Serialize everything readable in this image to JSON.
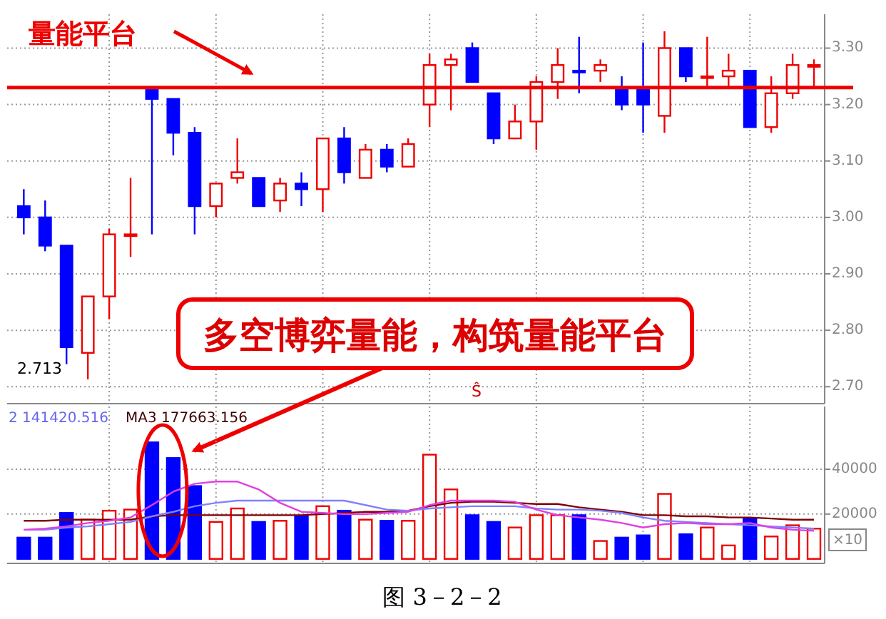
{
  "chart_data": [
    {
      "type": "candlestick",
      "categories": [
        null,
        null,
        null,
        null,
        null,
        null,
        null,
        null,
        null,
        null,
        null,
        null,
        null,
        null,
        null,
        null,
        null,
        null,
        null,
        null,
        null,
        null,
        null,
        null,
        null,
        null,
        null,
        null,
        null,
        null,
        null,
        null,
        null,
        null,
        null,
        null,
        null,
        null
      ],
      "ohlc": [
        [
          3.02,
          3.05,
          2.97,
          3.0
        ],
        [
          3.0,
          3.03,
          2.94,
          2.95
        ],
        [
          2.95,
          2.95,
          2.74,
          2.77
        ],
        [
          2.76,
          2.86,
          2.713,
          2.86
        ],
        [
          2.86,
          2.98,
          2.82,
          2.97
        ],
        [
          2.97,
          3.07,
          2.93,
          2.97
        ],
        [
          3.23,
          3.23,
          2.97,
          3.21
        ],
        [
          3.21,
          3.21,
          3.11,
          3.15
        ],
        [
          3.15,
          3.16,
          2.97,
          3.02
        ],
        [
          3.02,
          3.06,
          3.0,
          3.06
        ],
        [
          3.07,
          3.14,
          3.06,
          3.08
        ],
        [
          3.07,
          3.07,
          3.02,
          3.02
        ],
        [
          3.03,
          3.07,
          3.01,
          3.06
        ],
        [
          3.06,
          3.08,
          3.02,
          3.05
        ],
        [
          3.05,
          3.14,
          3.01,
          3.14
        ],
        [
          3.14,
          3.16,
          3.06,
          3.08
        ],
        [
          3.07,
          3.13,
          3.07,
          3.12
        ],
        [
          3.12,
          3.13,
          3.08,
          3.09
        ],
        [
          3.09,
          3.14,
          3.09,
          3.13
        ],
        [
          3.2,
          3.29,
          3.16,
          3.27
        ],
        [
          3.27,
          3.29,
          3.19,
          3.28
        ],
        [
          3.3,
          3.31,
          3.24,
          3.24
        ],
        [
          3.22,
          3.22,
          3.13,
          3.14
        ],
        [
          3.14,
          3.2,
          3.14,
          3.17
        ],
        [
          3.17,
          3.25,
          3.12,
          3.24
        ],
        [
          3.24,
          3.3,
          3.21,
          3.27
        ],
        [
          3.26,
          3.32,
          3.22,
          3.26
        ],
        [
          3.26,
          3.28,
          3.24,
          3.27
        ],
        [
          3.23,
          3.25,
          3.19,
          3.2
        ],
        [
          3.23,
          3.31,
          3.15,
          3.2
        ],
        [
          3.18,
          3.33,
          3.15,
          3.3
        ],
        [
          3.3,
          3.3,
          3.24,
          3.25
        ],
        [
          3.25,
          3.32,
          3.23,
          3.25
        ],
        [
          3.25,
          3.29,
          3.23,
          3.26
        ],
        [
          3.26,
          3.26,
          3.16,
          3.16
        ],
        [
          3.16,
          3.25,
          3.15,
          3.22
        ],
        [
          3.22,
          3.29,
          3.21,
          3.27
        ],
        [
          3.27,
          3.28,
          3.23,
          3.27
        ]
      ],
      "colors": [
        "#0000ff",
        "#0000ff",
        "#0000ff",
        "#ee0000",
        "#ee0000",
        "#ee0000",
        "#0000ff",
        "#0000ff",
        "#0000ff",
        "#ee0000",
        "#ee0000",
        "#0000ff",
        "#ee0000",
        "#0000ff",
        "#ee0000",
        "#0000ff",
        "#ee0000",
        "#0000ff",
        "#ee0000",
        "#ee0000",
        "#ee0000",
        "#0000ff",
        "#0000ff",
        "#ee0000",
        "#ee0000",
        "#ee0000",
        "#0000ff",
        "#ee0000",
        "#0000ff",
        "#0000ff",
        "#ee0000",
        "#0000ff",
        "#ee0000",
        "#ee0000",
        "#0000ff",
        "#ee0000",
        "#ee0000",
        "#ee0000"
      ],
      "ylim": [
        2.67,
        3.36
      ],
      "yticks": [
        {
          "value": 2.7,
          "label": "2.70"
        },
        {
          "value": 2.8,
          "label": "2.80"
        },
        {
          "value": 2.9,
          "label": "2.90"
        },
        {
          "value": 3.0,
          "label": "3.00"
        },
        {
          "value": 3.1,
          "label": "3.10"
        },
        {
          "value": 3.2,
          "label": "3.20"
        },
        {
          "value": 3.3,
          "label": "3.30"
        }
      ],
      "grid": true,
      "ref_lines": [
        {
          "axis": "y",
          "value": 3.23,
          "label": "量能平台",
          "color": "#ee0000"
        }
      ],
      "annotations": [
        "2.713",
        "多空博弈量能，构筑量能平台",
        "Ŝ",
        "图 3－2－2"
      ]
    },
    {
      "type": "bar",
      "categories": [
        null,
        null,
        null,
        null,
        null,
        null,
        null,
        null,
        null,
        null,
        null,
        null,
        null,
        null,
        null,
        null,
        null,
        null,
        null,
        null,
        null,
        null,
        null,
        null,
        null,
        null,
        null,
        null,
        null,
        null,
        null,
        null,
        null,
        null,
        null,
        null,
        null,
        null
      ],
      "series": [
        {
          "type": "bar",
          "values": [
            9500,
            9500,
            20500,
            17500,
            21500,
            22000,
            52000,
            45000,
            32500,
            16500,
            22500,
            16500,
            17000,
            19000,
            23500,
            21500,
            17500,
            17000,
            17000,
            46500,
            31000,
            19500,
            16500,
            14000,
            19500,
            19500,
            19500,
            8000,
            9500,
            10500,
            29000,
            11000,
            14000,
            6000,
            18000,
            10000,
            15000,
            13500
          ],
          "colors": [
            "#0000ff",
            "#0000ff",
            "#0000ff",
            "#ee0000",
            "#ee0000",
            "#ee0000",
            "#0000ff",
            "#0000ff",
            "#0000ff",
            "#ee0000",
            "#ee0000",
            "#0000ff",
            "#ee0000",
            "#0000ff",
            "#ee0000",
            "#0000ff",
            "#ee0000",
            "#0000ff",
            "#ee0000",
            "#ee0000",
            "#ee0000",
            "#0000ff",
            "#0000ff",
            "#ee0000",
            "#ee0000",
            "#ee0000",
            "#0000ff",
            "#ee0000",
            "#0000ff",
            "#0000ff",
            "#ee0000",
            "#0000ff",
            "#ee0000",
            "#ee0000",
            "#0000ff",
            "#ee0000",
            "#ee0000",
            "#ee0000"
          ]
        },
        {
          "type": "line",
          "color": "#800000",
          "values": [
            17000,
            17000,
            17500,
            17500,
            17500,
            17500,
            19000,
            19500,
            19500,
            19500,
            19500,
            19500,
            19500,
            19500,
            20000,
            20500,
            21000,
            21000,
            21500,
            23500,
            25000,
            25500,
            25500,
            25000,
            24500,
            24500,
            23000,
            22000,
            21000,
            19500,
            19500,
            19000,
            19000,
            18500,
            18500,
            18000,
            17500,
            17500
          ]
        },
        {
          "type": "line",
          "color": "#8080ff",
          "values": [
            13000,
            13000,
            14000,
            14500,
            15500,
            16500,
            19000,
            21000,
            23500,
            25000,
            26000,
            26000,
            26000,
            26000,
            26000,
            26000,
            24000,
            22000,
            21500,
            22500,
            23000,
            23500,
            23500,
            23500,
            22500,
            22000,
            22000,
            21500,
            20500,
            18500,
            17000,
            16500,
            16000,
            15500,
            15000,
            14500,
            14000,
            13500
          ]
        },
        {
          "type": "line",
          "color": "#e040e0",
          "values": [
            13000,
            13500,
            14500,
            16000,
            17000,
            18500,
            24000,
            30000,
            33500,
            34500,
            34500,
            31000,
            25000,
            21000,
            20500,
            20000,
            20000,
            20500,
            21000,
            24000,
            26000,
            26000,
            26000,
            25500,
            22000,
            19500,
            18500,
            17500,
            16000,
            14000,
            15500,
            16000,
            15500,
            15500,
            16000,
            14000,
            13000,
            12500
          ]
        }
      ],
      "ylim": [
        -2000,
        68000
      ],
      "yticks": [
        20000,
        40000
      ],
      "grid": true,
      "annotations": [
        "2 141420.516",
        "MA3 177663.156",
        "×10"
      ]
    }
  ]
}
